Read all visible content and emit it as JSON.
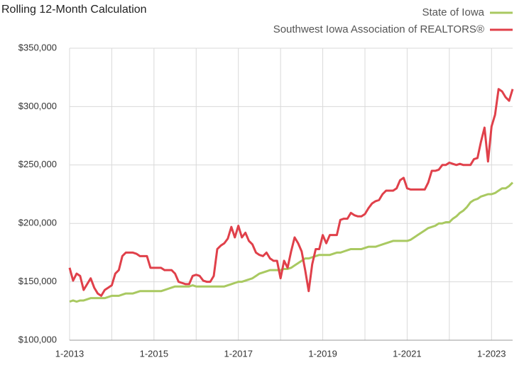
{
  "chart_data": {
    "type": "line",
    "title": "Rolling 12-Month Calculation",
    "categories": [
      "1-2013",
      null,
      null,
      null,
      null,
      null,
      null,
      null,
      null,
      null,
      null,
      null,
      null,
      null,
      null,
      null,
      null,
      null,
      null,
      null,
      null,
      null,
      null,
      null,
      "1-2015",
      null,
      null,
      null,
      null,
      null,
      null,
      null,
      null,
      null,
      null,
      null,
      null,
      null,
      null,
      null,
      null,
      null,
      null,
      null,
      null,
      null,
      null,
      null,
      "1-2017",
      null,
      null,
      null,
      null,
      null,
      null,
      null,
      null,
      null,
      null,
      null,
      null,
      null,
      null,
      null,
      null,
      null,
      null,
      null,
      null,
      null,
      null,
      null,
      "1-2019",
      null,
      null,
      null,
      null,
      null,
      null,
      null,
      null,
      null,
      null,
      null,
      null,
      null,
      null,
      null,
      null,
      null,
      null,
      null,
      null,
      null,
      null,
      null,
      "1-2021",
      null,
      null,
      null,
      null,
      null,
      null,
      null,
      null,
      null,
      null,
      null,
      null,
      null,
      null,
      null,
      null,
      null,
      null,
      null,
      null,
      null,
      null,
      null,
      "1-2023",
      null,
      null,
      null,
      null,
      null,
      null
    ],
    "series": [
      {
        "name": "State of Iowa",
        "color": "#a9c961",
        "values": [
          133000,
          134000,
          133000,
          134000,
          134000,
          135000,
          136000,
          136000,
          136000,
          136000,
          136000,
          137000,
          138000,
          138000,
          138000,
          139000,
          140000,
          140000,
          140000,
          141000,
          142000,
          142000,
          142000,
          142000,
          142000,
          142000,
          142000,
          143000,
          144000,
          145000,
          146000,
          146000,
          146000,
          146000,
          146000,
          147000,
          146000,
          146000,
          146000,
          146000,
          146000,
          146000,
          146000,
          146000,
          146000,
          147000,
          148000,
          149000,
          150000,
          150000,
          151000,
          152000,
          153000,
          155000,
          157000,
          158000,
          159000,
          160000,
          160000,
          160000,
          160000,
          161000,
          161000,
          162000,
          164000,
          166000,
          168000,
          170000,
          170000,
          171000,
          172000,
          173000,
          173000,
          173000,
          173000,
          174000,
          175000,
          175000,
          176000,
          177000,
          178000,
          178000,
          178000,
          178000,
          179000,
          180000,
          180000,
          180000,
          181000,
          182000,
          183000,
          184000,
          185000,
          185000,
          185000,
          185000,
          185000,
          186000,
          188000,
          190000,
          192000,
          194000,
          196000,
          197000,
          198000,
          200000,
          200000,
          201000,
          201000,
          204000,
          206000,
          209000,
          211000,
          214000,
          218000,
          220000,
          221000,
          223000,
          224000,
          225000,
          225000,
          226000,
          228000,
          230000,
          230000,
          232000,
          235000
        ]
      },
      {
        "name": "Southwest Iowa Association of REALTORS®",
        "color": "#e0404a",
        "values": [
          162000,
          151000,
          157000,
          155000,
          143000,
          148000,
          153000,
          145000,
          140000,
          138000,
          143000,
          145000,
          147000,
          157000,
          160000,
          172000,
          175000,
          175000,
          175000,
          174000,
          172000,
          172000,
          172000,
          162000,
          162000,
          162000,
          162000,
          160000,
          160000,
          160000,
          157000,
          150000,
          149000,
          148000,
          148000,
          155000,
          156000,
          155000,
          151000,
          150000,
          150000,
          155000,
          178000,
          181000,
          183000,
          187000,
          197000,
          188000,
          198000,
          188000,
          192000,
          185000,
          182000,
          175000,
          173000,
          172000,
          175000,
          170000,
          168000,
          168000,
          153000,
          168000,
          162000,
          176000,
          188000,
          183000,
          176000,
          160000,
          142000,
          165000,
          178000,
          178000,
          190000,
          183000,
          190000,
          190000,
          190000,
          203000,
          204000,
          204000,
          209000,
          207000,
          206000,
          206000,
          208000,
          213000,
          217000,
          219000,
          220000,
          225000,
          228000,
          228000,
          228000,
          230000,
          237000,
          239000,
          230000,
          229000,
          229000,
          229000,
          229000,
          229000,
          235000,
          245000,
          245000,
          246000,
          250000,
          250000,
          252000,
          251000,
          250000,
          251000,
          250000,
          250000,
          250000,
          255000,
          256000,
          270000,
          282000,
          253000,
          283000,
          293000,
          315000,
          313000,
          308000,
          305000,
          315000
        ]
      }
    ],
    "ylim": [
      100000,
      350000
    ],
    "yticks": [
      {
        "value": 100000,
        "label": "$100,000"
      },
      {
        "value": 150000,
        "label": "$150,000"
      },
      {
        "value": 200000,
        "label": "$200,000"
      },
      {
        "value": 250000,
        "label": "$250,000"
      },
      {
        "value": 300000,
        "label": "$300,000"
      },
      {
        "value": 350000,
        "label": "$350,000"
      }
    ],
    "grid": true,
    "legend": "top-right"
  }
}
